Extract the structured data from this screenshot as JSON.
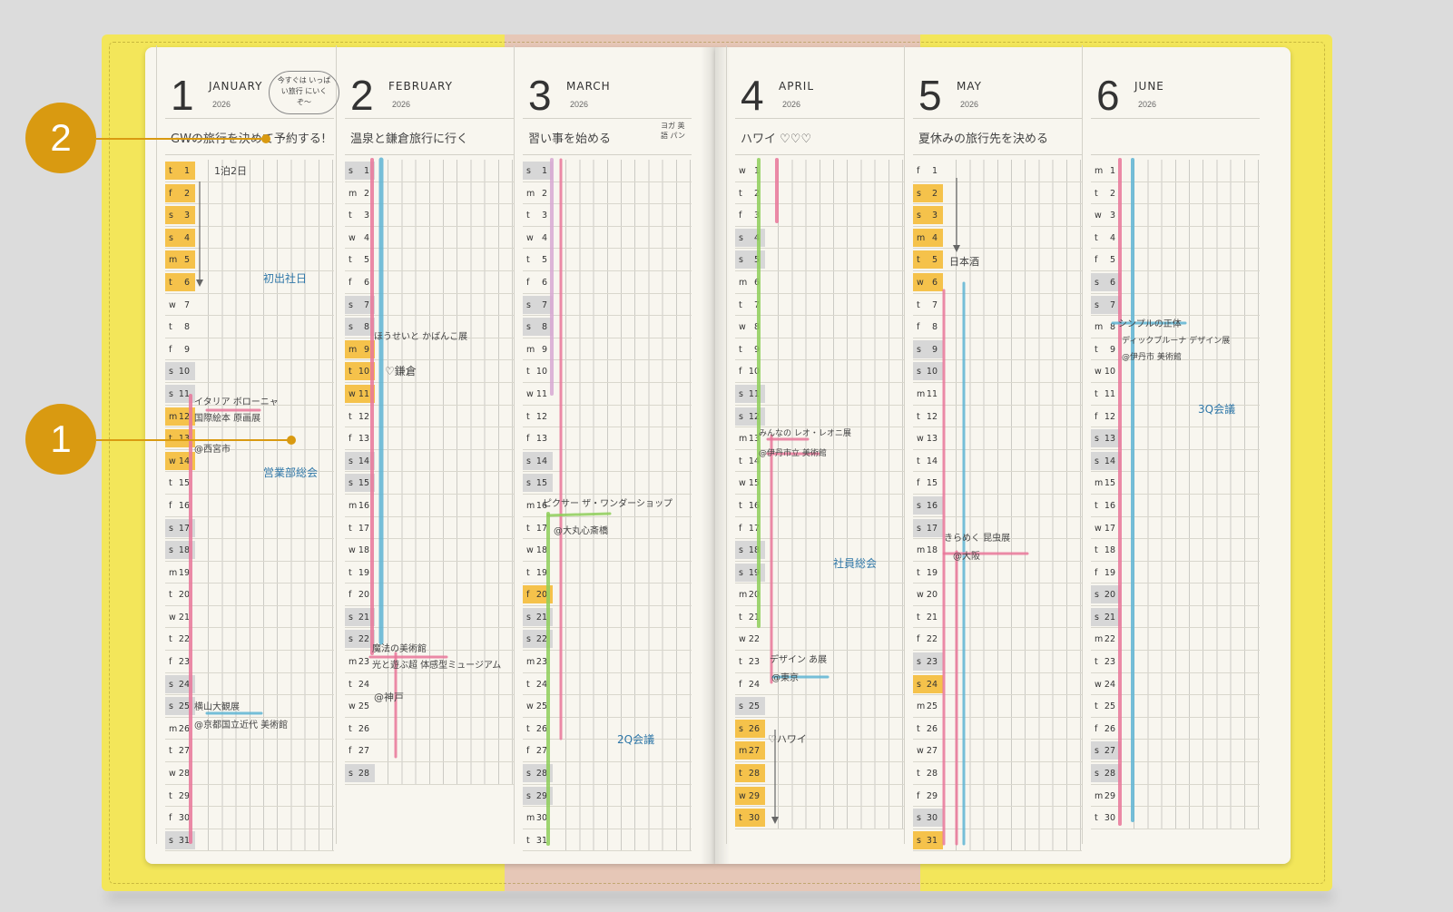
{
  "callouts": [
    "2",
    "1"
  ],
  "bubble_note": "今すぐは いっぱい旅行 にいくぞ〜",
  "months": [
    {
      "num": "1",
      "name": "JANUARY",
      "year": "2026",
      "goal": "GWの旅行を決めて予約する!",
      "days": [
        [
          "t",
          "1"
        ],
        [
          "f",
          "2"
        ],
        [
          "s",
          "3"
        ],
        [
          "s",
          "4"
        ],
        [
          "m",
          "5"
        ],
        [
          "t",
          "6"
        ],
        [
          "w",
          "7"
        ],
        [
          "t",
          "8"
        ],
        [
          "f",
          "9"
        ],
        [
          "s",
          "10"
        ],
        [
          "s",
          "11"
        ],
        [
          "m",
          "12"
        ],
        [
          "t",
          "13"
        ],
        [
          "w",
          "14"
        ],
        [
          "t",
          "15"
        ],
        [
          "f",
          "16"
        ],
        [
          "s",
          "17"
        ],
        [
          "s",
          "18"
        ],
        [
          "m",
          "19"
        ],
        [
          "t",
          "20"
        ],
        [
          "w",
          "21"
        ],
        [
          "t",
          "22"
        ],
        [
          "f",
          "23"
        ],
        [
          "s",
          "24"
        ],
        [
          "s",
          "25"
        ],
        [
          "m",
          "26"
        ],
        [
          "t",
          "27"
        ],
        [
          "w",
          "28"
        ],
        [
          "t",
          "29"
        ],
        [
          "f",
          "30"
        ],
        [
          "s",
          "31"
        ]
      ]
    },
    {
      "num": "2",
      "name": "FEBRUARY",
      "year": "2026",
      "goal": "温泉と鎌倉旅行に行く",
      "days": [
        [
          "s",
          "1"
        ],
        [
          "m",
          "2"
        ],
        [
          "t",
          "3"
        ],
        [
          "w",
          "4"
        ],
        [
          "t",
          "5"
        ],
        [
          "f",
          "6"
        ],
        [
          "s",
          "7"
        ],
        [
          "s",
          "8"
        ],
        [
          "m",
          "9"
        ],
        [
          "t",
          "10"
        ],
        [
          "w",
          "11"
        ],
        [
          "t",
          "12"
        ],
        [
          "f",
          "13"
        ],
        [
          "s",
          "14"
        ],
        [
          "s",
          "15"
        ],
        [
          "m",
          "16"
        ],
        [
          "t",
          "17"
        ],
        [
          "w",
          "18"
        ],
        [
          "t",
          "19"
        ],
        [
          "f",
          "20"
        ],
        [
          "s",
          "21"
        ],
        [
          "s",
          "22"
        ],
        [
          "m",
          "23"
        ],
        [
          "t",
          "24"
        ],
        [
          "w",
          "25"
        ],
        [
          "t",
          "26"
        ],
        [
          "f",
          "27"
        ],
        [
          "s",
          "28"
        ]
      ]
    },
    {
      "num": "3",
      "name": "MARCH",
      "year": "2026",
      "goal": "習い事を始める",
      "days": [
        [
          "s",
          "1"
        ],
        [
          "m",
          "2"
        ],
        [
          "t",
          "3"
        ],
        [
          "w",
          "4"
        ],
        [
          "t",
          "5"
        ],
        [
          "f",
          "6"
        ],
        [
          "s",
          "7"
        ],
        [
          "s",
          "8"
        ],
        [
          "m",
          "9"
        ],
        [
          "t",
          "10"
        ],
        [
          "w",
          "11"
        ],
        [
          "t",
          "12"
        ],
        [
          "f",
          "13"
        ],
        [
          "s",
          "14"
        ],
        [
          "s",
          "15"
        ],
        [
          "m",
          "16"
        ],
        [
          "t",
          "17"
        ],
        [
          "w",
          "18"
        ],
        [
          "t",
          "19"
        ],
        [
          "f",
          "20"
        ],
        [
          "s",
          "21"
        ],
        [
          "s",
          "22"
        ],
        [
          "m",
          "23"
        ],
        [
          "t",
          "24"
        ],
        [
          "w",
          "25"
        ],
        [
          "t",
          "26"
        ],
        [
          "f",
          "27"
        ],
        [
          "s",
          "28"
        ],
        [
          "s",
          "29"
        ],
        [
          "m",
          "30"
        ],
        [
          "t",
          "31"
        ]
      ]
    },
    {
      "num": "4",
      "name": "APRIL",
      "year": "2026",
      "goal": "ハワイ ♡♡♡",
      "days": [
        [
          "w",
          "1"
        ],
        [
          "t",
          "2"
        ],
        [
          "f",
          "3"
        ],
        [
          "s",
          "4"
        ],
        [
          "s",
          "5"
        ],
        [
          "m",
          "6"
        ],
        [
          "t",
          "7"
        ],
        [
          "w",
          "8"
        ],
        [
          "t",
          "9"
        ],
        [
          "f",
          "10"
        ],
        [
          "s",
          "11"
        ],
        [
          "s",
          "12"
        ],
        [
          "m",
          "13"
        ],
        [
          "t",
          "14"
        ],
        [
          "w",
          "15"
        ],
        [
          "t",
          "16"
        ],
        [
          "f",
          "17"
        ],
        [
          "s",
          "18"
        ],
        [
          "s",
          "19"
        ],
        [
          "m",
          "20"
        ],
        [
          "t",
          "21"
        ],
        [
          "w",
          "22"
        ],
        [
          "t",
          "23"
        ],
        [
          "f",
          "24"
        ],
        [
          "s",
          "25"
        ],
        [
          "s",
          "26"
        ],
        [
          "m",
          "27"
        ],
        [
          "t",
          "28"
        ],
        [
          "w",
          "29"
        ],
        [
          "t",
          "30"
        ]
      ]
    },
    {
      "num": "5",
      "name": "MAY",
      "year": "2026",
      "goal": "夏休みの旅行先を決める",
      "days": [
        [
          "f",
          "1"
        ],
        [
          "s",
          "2"
        ],
        [
          "s",
          "3"
        ],
        [
          "m",
          "4"
        ],
        [
          "t",
          "5"
        ],
        [
          "w",
          "6"
        ],
        [
          "t",
          "7"
        ],
        [
          "f",
          "8"
        ],
        [
          "s",
          "9"
        ],
        [
          "s",
          "10"
        ],
        [
          "m",
          "11"
        ],
        [
          "t",
          "12"
        ],
        [
          "w",
          "13"
        ],
        [
          "t",
          "14"
        ],
        [
          "f",
          "15"
        ],
        [
          "s",
          "16"
        ],
        [
          "s",
          "17"
        ],
        [
          "m",
          "18"
        ],
        [
          "t",
          "19"
        ],
        [
          "w",
          "20"
        ],
        [
          "t",
          "21"
        ],
        [
          "f",
          "22"
        ],
        [
          "s",
          "23"
        ],
        [
          "s",
          "24"
        ],
        [
          "m",
          "25"
        ],
        [
          "t",
          "26"
        ],
        [
          "w",
          "27"
        ],
        [
          "t",
          "28"
        ],
        [
          "f",
          "29"
        ],
        [
          "s",
          "30"
        ],
        [
          "s",
          "31"
        ]
      ]
    },
    {
      "num": "6",
      "name": "JUNE",
      "year": "2026",
      "goal": "",
      "days": [
        [
          "m",
          "1"
        ],
        [
          "t",
          "2"
        ],
        [
          "w",
          "3"
        ],
        [
          "t",
          "4"
        ],
        [
          "f",
          "5"
        ],
        [
          "s",
          "6"
        ],
        [
          "s",
          "7"
        ],
        [
          "m",
          "8"
        ],
        [
          "t",
          "9"
        ],
        [
          "w",
          "10"
        ],
        [
          "t",
          "11"
        ],
        [
          "f",
          "12"
        ],
        [
          "s",
          "13"
        ],
        [
          "s",
          "14"
        ],
        [
          "m",
          "15"
        ],
        [
          "t",
          "16"
        ],
        [
          "w",
          "17"
        ],
        [
          "t",
          "18"
        ],
        [
          "f",
          "19"
        ],
        [
          "s",
          "20"
        ],
        [
          "s",
          "21"
        ],
        [
          "m",
          "22"
        ],
        [
          "t",
          "23"
        ],
        [
          "w",
          "24"
        ],
        [
          "t",
          "25"
        ],
        [
          "f",
          "26"
        ],
        [
          "s",
          "27"
        ],
        [
          "s",
          "28"
        ],
        [
          "m",
          "29"
        ],
        [
          "t",
          "30"
        ]
      ]
    }
  ],
  "goal_side_note": "ヨガ 英語 パン",
  "notes": [
    {
      "text": "1泊2日"
    },
    {
      "text": "初出社日"
    },
    {
      "text": "イタリア ボローニャ"
    },
    {
      "text": "国際絵本 原画展"
    },
    {
      "text": "@西宮市"
    },
    {
      "text": "営業部総会"
    },
    {
      "text": "横山大観展"
    },
    {
      "text": "@京都国立近代 美術館"
    },
    {
      "text": "ほうせいと かばんこ展"
    },
    {
      "text": "♡鎌倉"
    },
    {
      "text": "魔法の美術館"
    },
    {
      "text": "光と遊ぶ超 体感型ミュージアム"
    },
    {
      "text": "@神戸"
    },
    {
      "text": "ピクサー ザ・ワンダーショップ"
    },
    {
      "text": "@大丸心斎橋"
    },
    {
      "text": "2Q会議"
    },
    {
      "text": "みんなの レオ・レオニ展"
    },
    {
      "text": "@伊丹市立 美術館"
    },
    {
      "text": "社員総会"
    },
    {
      "text": "デザイン あ展"
    },
    {
      "text": "@東京"
    },
    {
      "text": "♡ハワイ"
    },
    {
      "text": "日本酒"
    },
    {
      "text": "きらめく 昆虫展"
    },
    {
      "text": "@大阪"
    },
    {
      "text": "シンプルの正体"
    },
    {
      "text": "ディックブルーナ デザイン展"
    },
    {
      "text": "@伊丹市 美術館"
    },
    {
      "text": "3Q会議"
    }
  ],
  "colors": {
    "cover": "#f3e65a",
    "accent": "#d99a11",
    "highlight": "#f5c24b",
    "weekend": "#d7d7d7",
    "pink": "#e9779a",
    "blue": "#5fb5d4",
    "green": "#8fcf5a",
    "lilac": "#d8a9d3"
  },
  "highlighted": {
    "1": [
      "1",
      "2",
      "3",
      "4",
      "5",
      "6",
      "12",
      "13",
      "14"
    ],
    "2": [
      "9",
      "10",
      "11"
    ],
    "3": [
      "20"
    ],
    "4": [
      "26",
      "27",
      "28",
      "29",
      "30"
    ],
    "5": [
      "2",
      "3",
      "4",
      "5",
      "6",
      "24",
      "31"
    ],
    "6": []
  }
}
